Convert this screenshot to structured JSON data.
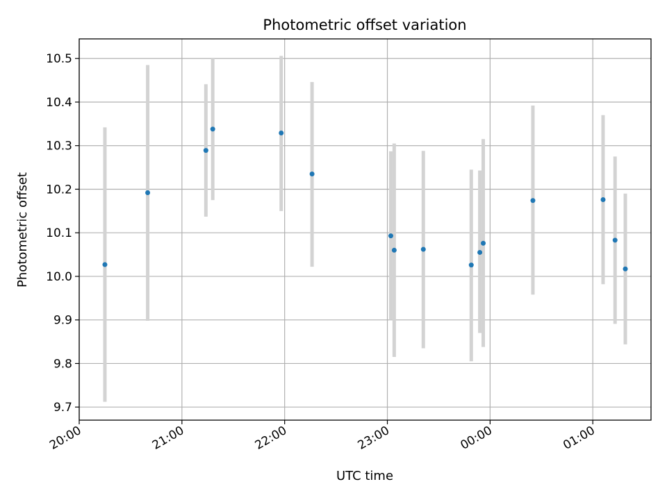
{
  "chart_data": {
    "type": "scatter",
    "title": "Photometric offset variation",
    "xlabel": "UTC time",
    "ylabel": "Photometric offset",
    "x_axis_kind": "time",
    "xlim": [
      "20:00",
      "01:34"
    ],
    "ylim": [
      9.67,
      10.545
    ],
    "grid": true,
    "legend": "none",
    "x_tick_labels": [
      "20:00",
      "21:00",
      "22:00",
      "23:00",
      "00:00",
      "01:00"
    ],
    "y_tick_labels": [
      "9.7",
      "9.8",
      "9.9",
      "10.0",
      "10.1",
      "10.2",
      "10.3",
      "10.4",
      "10.5"
    ],
    "colors": {
      "point": "#1f77b4",
      "errorbar": "#d3d3d3",
      "grid": "#b0b0b0"
    },
    "series": [
      {
        "x": [
          "20:15",
          "20:40",
          "21:14",
          "21:18",
          "21:58",
          "22:16",
          "23:02",
          "23:04",
          "23:21",
          "23:49",
          "23:54",
          "23:56",
          "00:25",
          "01:06",
          "01:13",
          "01:19"
        ],
        "y": [
          10.027,
          10.192,
          10.289,
          10.338,
          10.329,
          10.235,
          10.093,
          10.06,
          10.062,
          10.026,
          10.055,
          10.076,
          10.174,
          10.176,
          10.083,
          10.017
        ],
        "yerr_low": [
          9.712,
          9.898,
          10.137,
          10.175,
          10.15,
          10.022,
          9.9,
          9.815,
          9.835,
          9.805,
          9.87,
          9.838,
          9.958,
          9.982,
          9.891,
          9.844
        ],
        "yerr_high": [
          10.342,
          10.485,
          10.441,
          10.5,
          10.506,
          10.446,
          10.287,
          10.305,
          10.288,
          10.245,
          10.243,
          10.315,
          10.392,
          10.37,
          10.275,
          10.19
        ]
      }
    ]
  }
}
